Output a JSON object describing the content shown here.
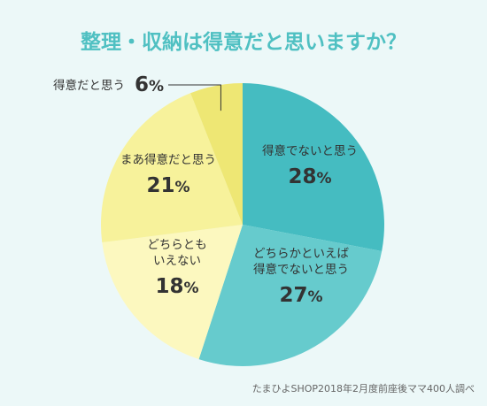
{
  "chart_data": {
    "type": "pie",
    "title": "整理・収納は得意だと思いますか？",
    "unit": "%",
    "slices": [
      {
        "label_lines": [
          "得意でないと思う"
        ],
        "value": 28,
        "color": "#45bcc1"
      },
      {
        "label_lines": [
          "どちらかといえば",
          "得意でないと思う"
        ],
        "value": 27,
        "color": "#66cbcd"
      },
      {
        "label_lines": [
          "どちらとも",
          "いえない"
        ],
        "value": 18,
        "color": "#fcf8bf"
      },
      {
        "label_lines": [
          "まあ得意だと思う"
        ],
        "value": 21,
        "color": "#f7f29b"
      },
      {
        "label_lines": [
          "得意だと思う"
        ],
        "value": 6,
        "color": "#eee774"
      }
    ],
    "source": "たまひよSHOP2018年2月度前座後ママ400人調べ",
    "start_angle": "12 o'clock",
    "direction": "clockwise"
  },
  "colors": {
    "background": "#ecf8f8",
    "title": "#4fc0c2",
    "text": "#333333",
    "source": "#666666",
    "leader_line": "#333333"
  }
}
